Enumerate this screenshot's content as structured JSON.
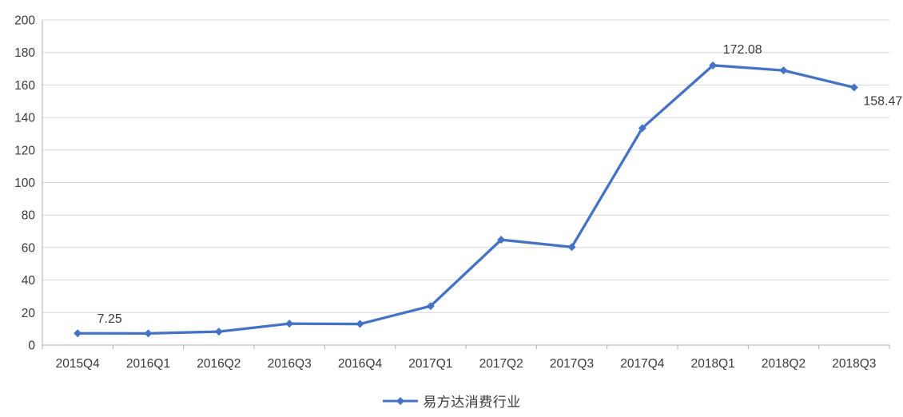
{
  "chart_data": {
    "type": "line",
    "title": "",
    "xlabel": "",
    "ylabel": "",
    "categories": [
      "2015Q4",
      "2016Q1",
      "2016Q2",
      "2016Q3",
      "2016Q4",
      "2017Q1",
      "2017Q2",
      "2017Q3",
      "2017Q4",
      "2018Q1",
      "2018Q2",
      "2018Q3"
    ],
    "series": [
      {
        "name": "易方达消费行业",
        "color": "#4472C4",
        "values": [
          7.25,
          7.2,
          8.3,
          13.2,
          13.0,
          24.0,
          64.8,
          60.3,
          133.5,
          172.08,
          169.0,
          158.47
        ]
      }
    ],
    "point_labels": [
      {
        "index": 0,
        "text": "7.25"
      },
      {
        "index": 9,
        "text": "172.08"
      },
      {
        "index": 11,
        "text": "158.47"
      }
    ],
    "y_ticks": [
      "0",
      "20",
      "40",
      "60",
      "80",
      "100",
      "120",
      "140",
      "160",
      "180",
      "200"
    ],
    "ylim": [
      0,
      200
    ],
    "grid": true,
    "legend_position": "bottom",
    "marker": "diamond"
  },
  "colors": {
    "line": "#4472C4",
    "gridline": "#D6D6D6",
    "axis": "#ABABAB",
    "text": "#3a3a3a"
  }
}
